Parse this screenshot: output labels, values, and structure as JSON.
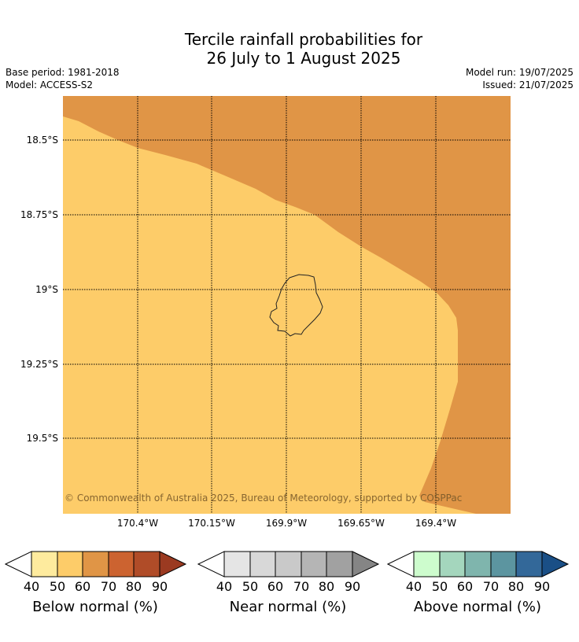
{
  "title_line1": "Tercile rainfall probabilities for",
  "title_line2": "26 July to 1 August 2025",
  "meta_left": [
    "Base period: 1981-2018",
    "Model: ACCESS-S2"
  ],
  "meta_right": [
    "Model run: 19/07/2025",
    "Issued: 21/07/2025"
  ],
  "map": {
    "lat_labels": [
      "18.5°S",
      "18.75°S",
      "19°S",
      "19.25°S",
      "19.5°S"
    ],
    "lon_labels": [
      "170.4°W",
      "170.15°W",
      "169.9°W",
      "169.65°W",
      "169.4°W"
    ],
    "copyright": "© Commonwealth of Australia 2025, Bureau of Meteorology, supported by COSPPac",
    "region_colors": {
      "below_50_60": "#fdcc69",
      "below_60_70": "#e09546"
    }
  },
  "colorbars": [
    {
      "label": "Below normal (%)",
      "ticks": [
        "40",
        "50",
        "60",
        "70",
        "80",
        "90"
      ],
      "colors": [
        "#ffffff",
        "#feeb9e",
        "#fdcc69",
        "#e09546",
        "#cc6330",
        "#b04c28",
        "#9b3a21"
      ]
    },
    {
      "label": "Near normal (%)",
      "ticks": [
        "40",
        "50",
        "60",
        "70",
        "80",
        "90"
      ],
      "colors": [
        "#ffffff",
        "#e5e5e5",
        "#d8d8d8",
        "#c9c9c9",
        "#b5b5b5",
        "#a1a1a1",
        "#858585"
      ]
    },
    {
      "label": "Above normal (%)",
      "ticks": [
        "40",
        "50",
        "60",
        "70",
        "80",
        "90"
      ],
      "colors": [
        "#ffffff",
        "#cdfccd",
        "#a4d6bd",
        "#7fb5ad",
        "#5c95a0",
        "#336899",
        "#1a4f86"
      ]
    }
  ]
}
